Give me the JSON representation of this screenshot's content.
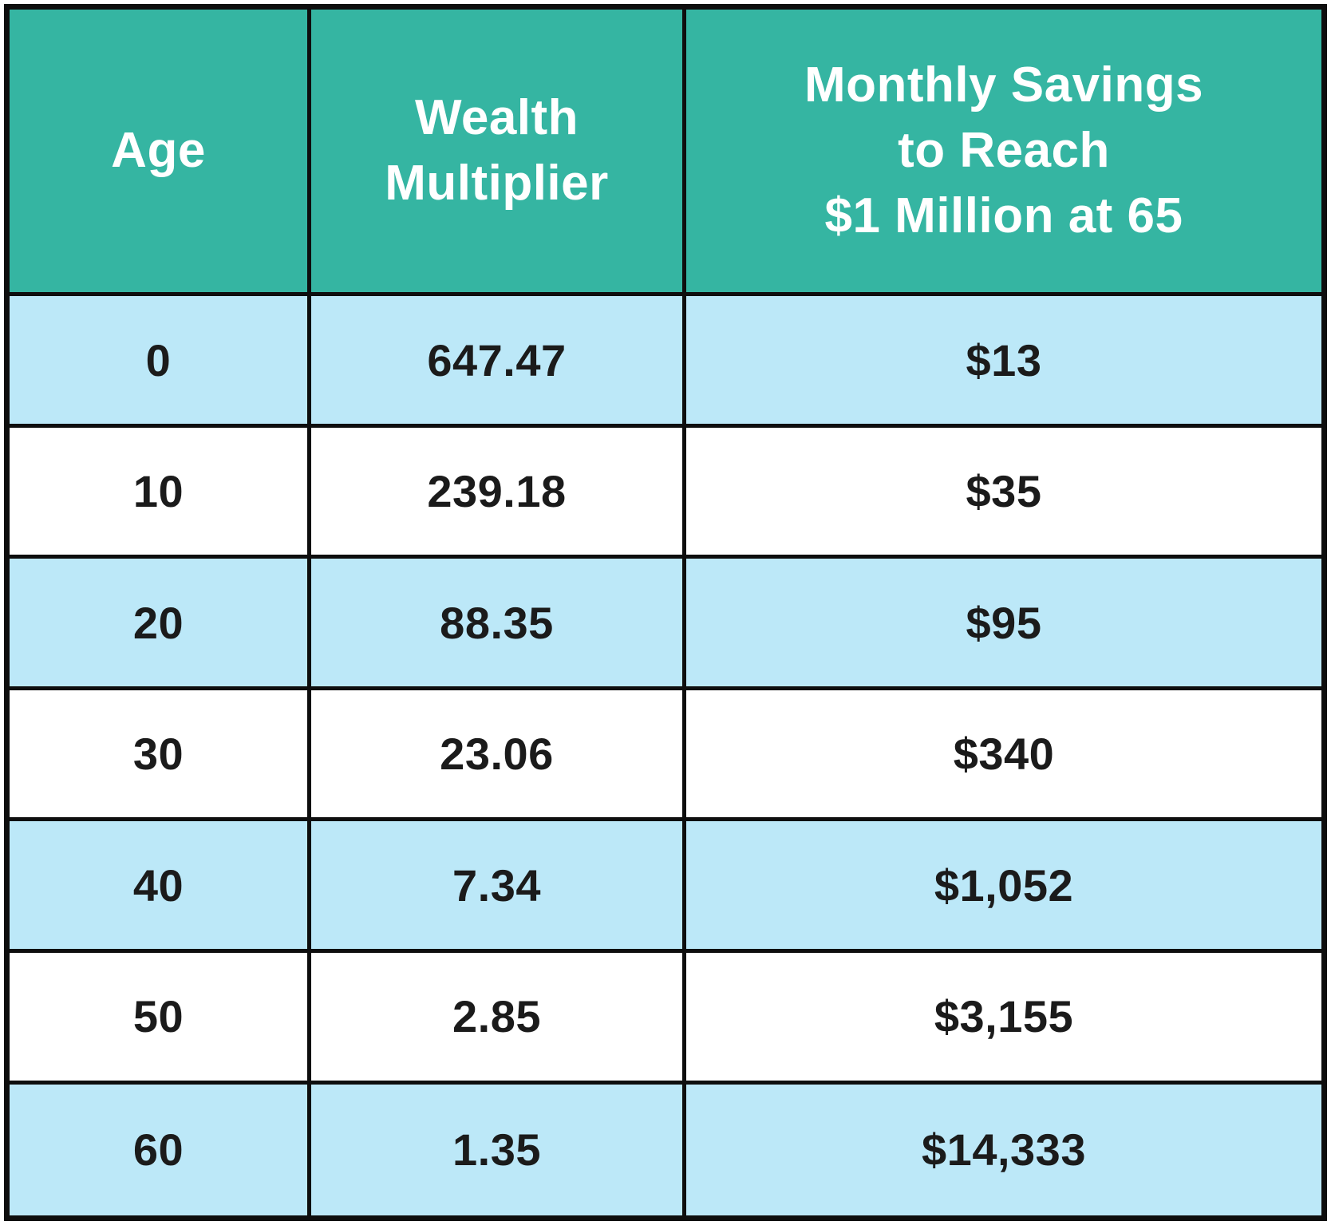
{
  "table": {
    "columns": [
      {
        "label_lines": [
          "Age"
        ]
      },
      {
        "label_lines": [
          "Wealth",
          "Multiplier"
        ]
      },
      {
        "label_lines": [
          "Monthly Savings",
          "to Reach",
          "$1 Million at 65"
        ]
      }
    ],
    "rows": [
      {
        "age": "0",
        "multiplier": "647.47",
        "savings": "$13"
      },
      {
        "age": "10",
        "multiplier": "239.18",
        "savings": "$35"
      },
      {
        "age": "20",
        "multiplier": "88.35",
        "savings": "$95"
      },
      {
        "age": "30",
        "multiplier": "23.06",
        "savings": "$340"
      },
      {
        "age": "40",
        "multiplier": "7.34",
        "savings": "$1,052"
      },
      {
        "age": "50",
        "multiplier": "2.85",
        "savings": "$3,155"
      },
      {
        "age": "60",
        "multiplier": "1.35",
        "savings": "$14,333"
      }
    ]
  },
  "colors": {
    "header_bg": "#35b5a2",
    "header_text": "#ffffff",
    "row_alt_bg": "#bce8f8",
    "row_bg": "#ffffff",
    "border": "#0e0e0e",
    "cell_text": "#1b1b1b"
  },
  "chart_data": {
    "type": "table",
    "title": "",
    "columns": [
      "Age",
      "Wealth Multiplier",
      "Monthly Savings to Reach $1 Million at 65"
    ],
    "rows": [
      [
        0,
        647.47,
        "$13"
      ],
      [
        10,
        239.18,
        "$35"
      ],
      [
        20,
        88.35,
        "$95"
      ],
      [
        30,
        23.06,
        "$340"
      ],
      [
        40,
        7.34,
        "$1,052"
      ],
      [
        50,
        2.85,
        "$3,155"
      ],
      [
        60,
        1.35,
        "$14,333"
      ]
    ]
  }
}
